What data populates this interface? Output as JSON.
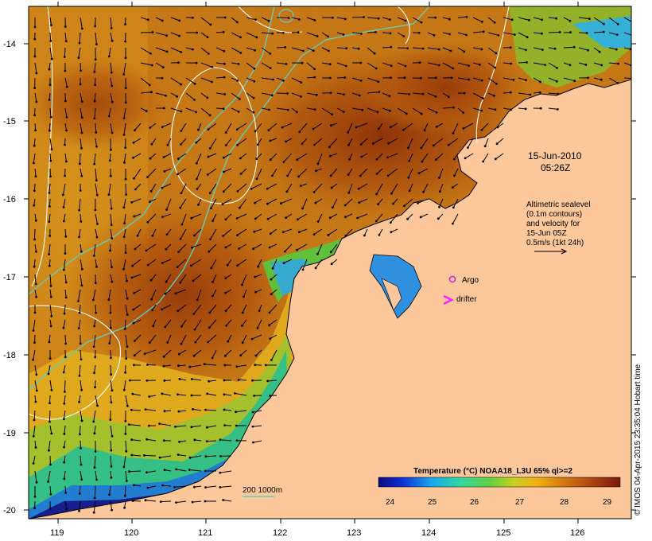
{
  "map": {
    "lat_labels": [
      "-14",
      "-15",
      "-16",
      "-17",
      "-18",
      "-19",
      "-20"
    ],
    "lon_labels": [
      "119",
      "120",
      "121",
      "122",
      "123",
      "124",
      "125",
      "126"
    ],
    "date_line1": "15-Jun-2010",
    "date_line2": "05:26Z",
    "altimetry_lines": [
      "Altimetric sealevel",
      "(0.1m contours)",
      "and velocity for",
      "15-Jun 05Z",
      "0.5m/s (1kt 24h)"
    ],
    "legend_argo": "Argo",
    "legend_drifter": "drifter",
    "isobath_label": "200  1000m",
    "colorbar_title": "Temperature (°C) NOAA18_L3U 65% ql>=2",
    "colorbar_ticks": [
      "24",
      "25",
      "26",
      "27",
      "28",
      "29"
    ],
    "credit": "© IMOS 04-Apr-2015 23:35:04 Hobart time",
    "colors": {
      "land": "#fbc79b",
      "isobath": "#5ed0c0",
      "argo": "#d020d0",
      "drifter": "#ff20ff"
    }
  }
}
